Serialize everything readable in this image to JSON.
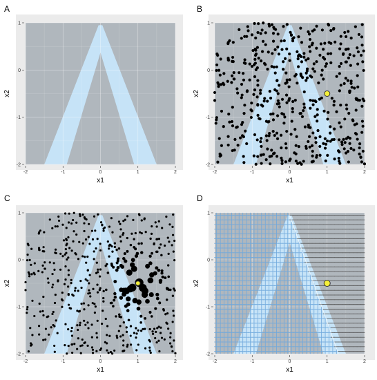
{
  "colors": {
    "panel_background": "#EBEBEB",
    "plot_region": "#B0B7BD",
    "band": "#C6E3F7",
    "grid": "#FFFFFF",
    "points": "#000000",
    "highlight_fill": "#F5F03A",
    "highlight_stroke": "#333333",
    "plus_marker": "#6FA8DC",
    "minus_marker": "#555555"
  },
  "chart_data": [
    {
      "panel": "A",
      "type": "heatmap",
      "xlabel": "x1",
      "ylabel": "x2",
      "xlim": [
        -2,
        2
      ],
      "ylim": [
        -2,
        1
      ],
      "x_ticks": [
        -2,
        -1,
        0,
        1,
        2
      ],
      "y_ticks": [
        1,
        0,
        -1,
        -2
      ],
      "x_tick_labels": [
        "-2",
        "-1",
        "0",
        "1",
        "2"
      ],
      "y_tick_labels": [
        "1",
        "0",
        "-1",
        "-2"
      ],
      "band_apex": [
        0,
        0.95
      ],
      "band_left_edge_at_ymin": [
        -1.5,
        -0.9
      ],
      "band_right_edge_at_ymin": [
        0.9,
        1.5
      ],
      "grid": true
    },
    {
      "panel": "B",
      "type": "scatter",
      "xlabel": "x1",
      "ylabel": "x2",
      "xlim": [
        -2,
        2
      ],
      "ylim": [
        -2,
        1
      ],
      "x_ticks": [
        -2,
        -1,
        0,
        1,
        2
      ],
      "y_ticks": [
        1,
        0,
        -1,
        -2
      ],
      "x_tick_labels": [
        "-2",
        "-1",
        "0",
        "1",
        "2"
      ],
      "y_tick_labels": [
        "1",
        "0",
        "-1",
        "-2"
      ],
      "n_points": 500,
      "points_distribution": "uniform",
      "highlight_point": [
        1,
        -0.5
      ],
      "grid": true
    },
    {
      "panel": "C",
      "type": "scatter",
      "xlabel": "x1",
      "ylabel": "x2",
      "xlim": [
        -2,
        2
      ],
      "ylim": [
        -2,
        1
      ],
      "x_ticks": [
        -2,
        -1,
        0,
        1,
        2
      ],
      "y_ticks": [
        1,
        0,
        -1,
        -2
      ],
      "x_tick_labels": [
        "-2",
        "-1",
        "0",
        "1",
        "2"
      ],
      "y_tick_labels": [
        "1",
        "0",
        "-1",
        "-2"
      ],
      "n_points": 500,
      "points_distribution": "uniform",
      "point_size_encoding": "proximity_weight",
      "highlight_point": [
        1,
        -0.5
      ],
      "grid": true
    },
    {
      "panel": "D",
      "type": "scatter",
      "xlabel": "x1",
      "ylabel": "x2",
      "xlim": [
        -2,
        2
      ],
      "ylim": [
        -2,
        1
      ],
      "x_ticks": [
        -2,
        -1,
        0,
        1,
        2
      ],
      "y_ticks": [
        1,
        0,
        -1,
        -2
      ],
      "x_tick_labels": [
        "-2",
        "-1",
        "0",
        "1",
        "2"
      ],
      "y_tick_labels": [
        "1",
        "0",
        "-1",
        "-2"
      ],
      "marker_grid_step": 0.1,
      "markers": [
        "+",
        "-"
      ],
      "decision_boundary": [
        [
          0,
          0.95
        ],
        [
          1.3,
          -2
        ]
      ],
      "highlight_point": [
        1,
        -0.5
      ],
      "grid": true
    }
  ]
}
